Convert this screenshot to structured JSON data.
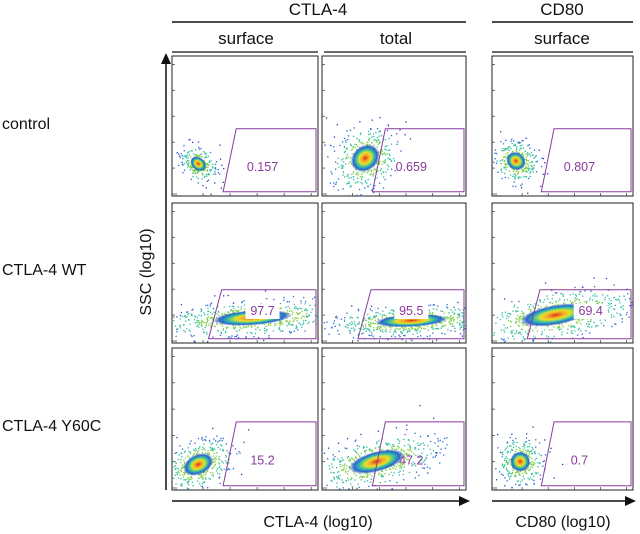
{
  "headers": {
    "group1": "CTLA-4",
    "group2": "CD80",
    "col_surface_1": "surface",
    "col_total": "total",
    "col_surface_2": "surface"
  },
  "rows": [
    "control",
    "CTLA-4 WT",
    "CTLA-4 Y60C"
  ],
  "axes": {
    "y_label": "SSC (log10)",
    "x_label_1": "CTLA-4 (log10)",
    "x_label_2": "CD80 (log10)"
  },
  "panels": [
    {
      "row": 0,
      "col": 0,
      "value": "0.157",
      "label_boxed": false
    },
    {
      "row": 0,
      "col": 1,
      "value": "0.659",
      "label_boxed": false
    },
    {
      "row": 0,
      "col": 2,
      "value": "0.807",
      "label_boxed": false
    },
    {
      "row": 1,
      "col": 0,
      "value": "97.7",
      "label_boxed": true
    },
    {
      "row": 1,
      "col": 1,
      "value": "95.5",
      "label_boxed": true
    },
    {
      "row": 1,
      "col": 2,
      "value": "69.4",
      "label_boxed": true
    },
    {
      "row": 2,
      "col": 0,
      "value": "15.2",
      "label_boxed": false
    },
    {
      "row": 2,
      "col": 1,
      "value": "47.2",
      "label_boxed": false
    },
    {
      "row": 2,
      "col": 2,
      "value": "0.7",
      "label_boxed": false
    }
  ],
  "colors": {
    "gate": "#8a3a9e",
    "density_low": "#1f3fbf",
    "density_mid": "#2fbfa0",
    "density_high": "#e8e020",
    "density_peak": "#e02010"
  }
}
